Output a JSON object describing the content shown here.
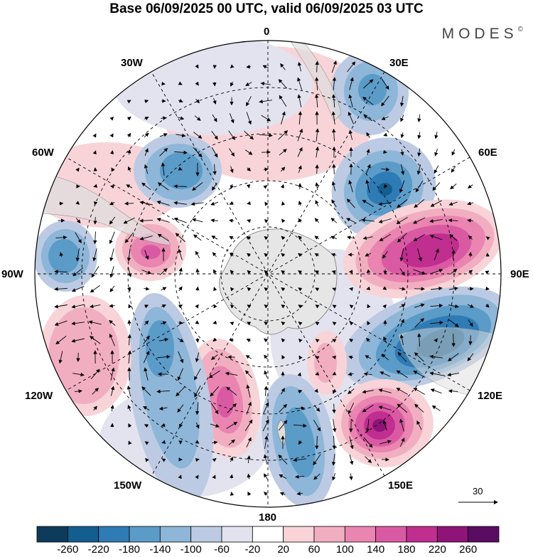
{
  "title": "Base 06/09/2025 00 UTC, valid 06/09/2025 03 UTC",
  "brand": "MODES",
  "brand_mark": "©",
  "longitude_labels": {
    "lon_0": "0",
    "lon_30e": "30E",
    "lon_60e": "60E",
    "lon_90e": "90E",
    "lon_120e": "120E",
    "lon_150e": "150E",
    "lon_180": "180",
    "lon_150w": "150W",
    "lon_120w": "120W",
    "lon_90w": "90W",
    "lon_60w": "60W",
    "lon_30w": "30W"
  },
  "vector_reference": "30",
  "colorbar": {
    "ticks": [
      "-260",
      "-220",
      "-180",
      "-140",
      "-100",
      "-60",
      "-20",
      "20",
      "60",
      "100",
      "140",
      "180",
      "220",
      "260"
    ],
    "colors": [
      "#0e3b5c",
      "#135d8f",
      "#2f7bb5",
      "#5a9bc8",
      "#8db6d8",
      "#bccbe3",
      "#e2e3ef",
      "#ffffff",
      "#f8d4d8",
      "#f2aec1",
      "#ea84b0",
      "#d95aa3",
      "#c02e8f",
      "#8f1478",
      "#5a0c62"
    ]
  }
}
